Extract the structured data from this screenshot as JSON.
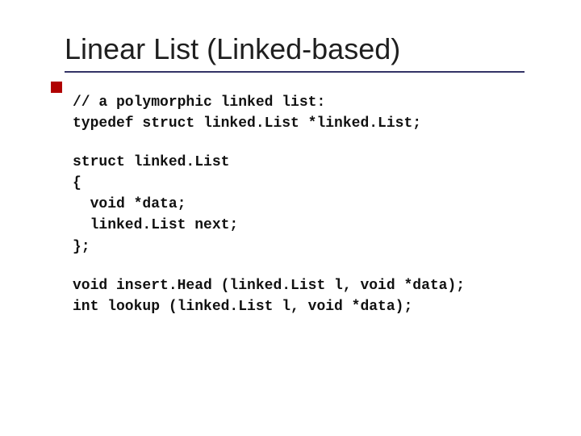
{
  "slide": {
    "title": "Linear List (Linked-based)",
    "title_color": "#1f1f1f",
    "title_fontsize": 36,
    "underline_color": "#333366",
    "tick_color": "#b00000",
    "background_color": "#ffffff",
    "code_font": "Courier New",
    "code_fontsize": 18,
    "code_color": "#111111",
    "code_blocks": [
      {
        "lines": [
          "// a polymorphic linked list:",
          "typedef struct linked.List *linked.List;"
        ]
      },
      {
        "lines": [
          "struct linked.List",
          "{",
          "  void *data;",
          "  linked.List next;",
          "};"
        ]
      },
      {
        "lines": [
          "void insert.Head (linked.List l, void *data);",
          "int lookup (linked.List l, void *data);"
        ]
      }
    ]
  }
}
